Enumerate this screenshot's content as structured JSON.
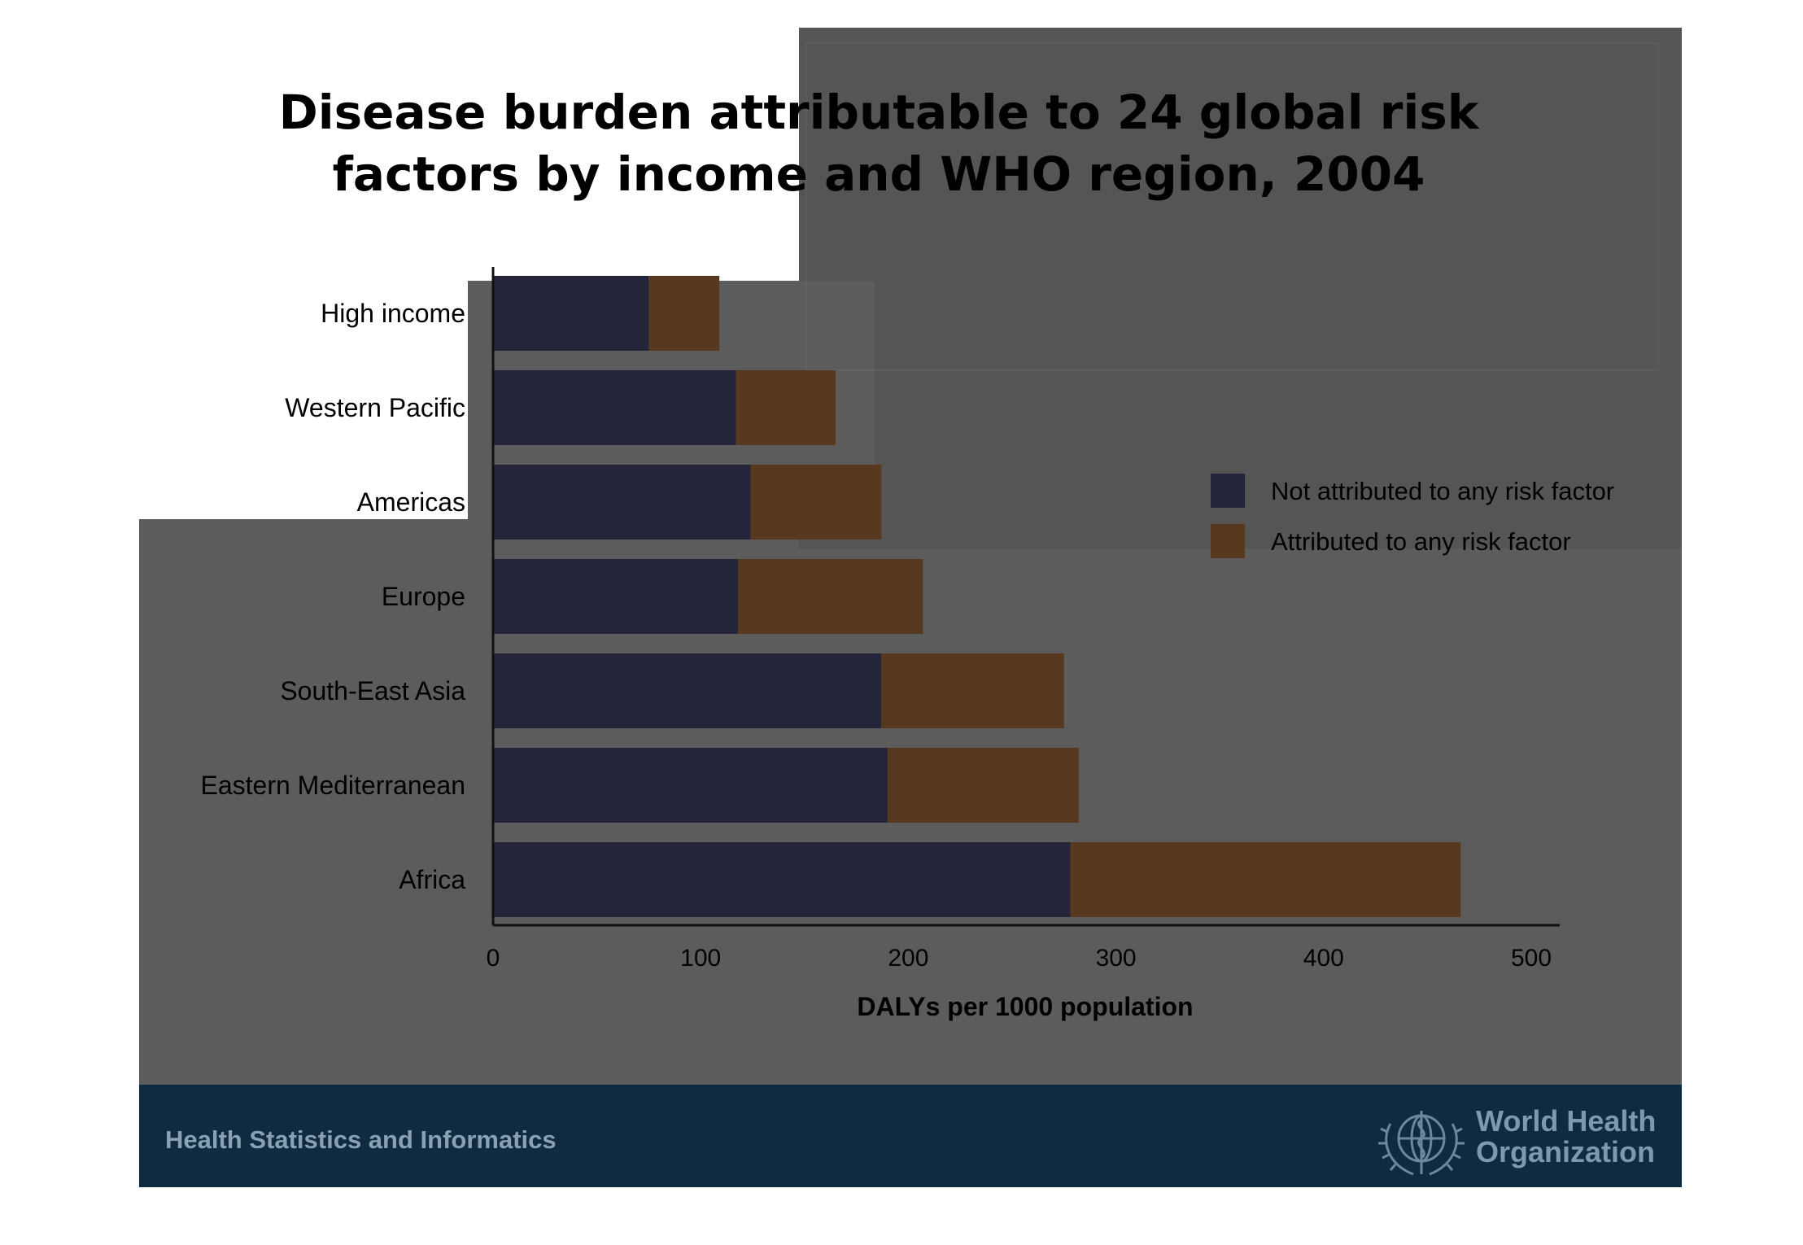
{
  "slide": {
    "title_line1": "Disease burden attributable to 24 global risk",
    "title_line2": "factors by income and WHO region, 2004",
    "footer_text": "Health Statistics and Informatics",
    "org_name_line1": "World Health",
    "org_name_line2": "Organization"
  },
  "colors": {
    "not_attributed": "#24243a",
    "attributed": "#573920",
    "background": "#5c5c5c",
    "footer": "#0f2b40"
  },
  "chart_data": {
    "type": "bar",
    "orientation": "horizontal",
    "stacked": true,
    "title": "Disease burden attributable to 24 global risk factors by income and WHO region, 2004",
    "categories": [
      "High income",
      "Western Pacific",
      "Americas",
      "Europe",
      "South-East Asia",
      "Eastern Mediterranean",
      "Africa"
    ],
    "series": [
      {
        "name": "Not attributed to any risk factor",
        "values": [
          75,
          117,
          124,
          118,
          187,
          190,
          278
        ]
      },
      {
        "name": "Attributed to any risk factor",
        "values": [
          34,
          48,
          63,
          89,
          88,
          92,
          188
        ]
      }
    ],
    "xlabel": "DALYs per 1000 population",
    "ylabel": "",
    "xlim": [
      0,
      500
    ],
    "xticks": [
      0,
      100,
      200,
      300,
      400,
      500
    ],
    "xtick_labels": [
      "0",
      "100",
      "200",
      "300",
      "400",
      "500"
    ],
    "legend": "right",
    "grid": false
  }
}
